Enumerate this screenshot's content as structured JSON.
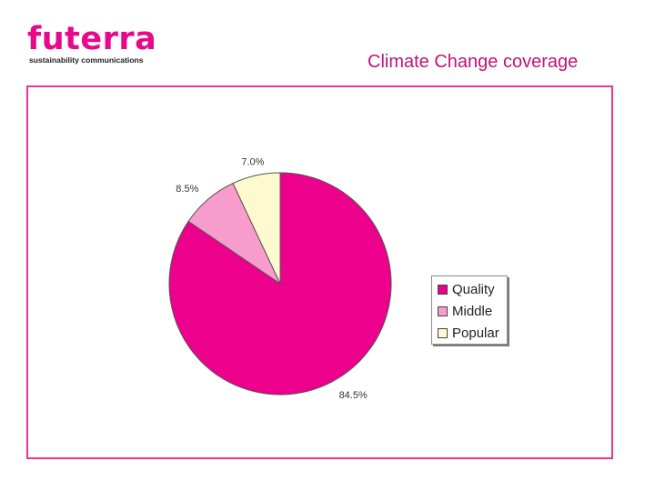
{
  "logo": {
    "brand": "futerra",
    "tagline": "sustainability communications",
    "color": "#e8098b"
  },
  "slide_title": "Climate Change coverage",
  "title_color": "#c2127a",
  "frame_color": "#e8349d",
  "chart_data": {
    "type": "pie",
    "title": "",
    "slices": [
      {
        "name": "Quality",
        "value": 84.5,
        "label": "84.5%",
        "color": "#ec008c"
      },
      {
        "name": "Middle",
        "value": 8.5,
        "label": "8.5%",
        "color": "#f79ccc"
      },
      {
        "name": "Popular",
        "value": 7.0,
        "label": "7.0%",
        "color": "#fff9d0"
      }
    ],
    "start": "12 o'clock",
    "direction": "clockwise",
    "legend_position": "right"
  }
}
